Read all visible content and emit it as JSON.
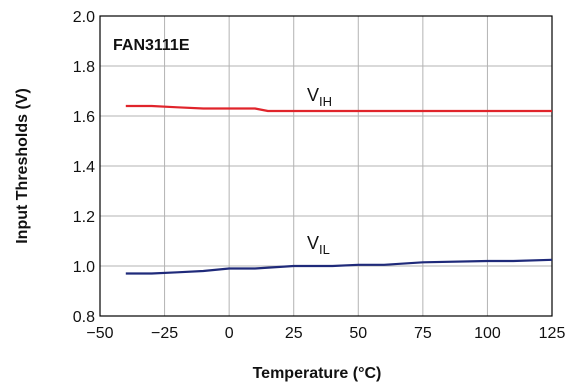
{
  "chart_data": {
    "type": "line",
    "title": "FAN3111E",
    "xlabel": "Temperature (°C)",
    "ylabel": "Input Thresholds (V)",
    "xlim": [
      -50,
      125
    ],
    "ylim": [
      0.8,
      2.0
    ],
    "x_ticks": [
      "−50",
      "−25",
      "0",
      "25",
      "50",
      "75",
      "100",
      "125"
    ],
    "y_ticks": [
      "0.8",
      "1.0",
      "1.2",
      "1.4",
      "1.6",
      "1.8",
      "2.0"
    ],
    "x_tick_values": [
      -50,
      -25,
      0,
      25,
      50,
      75,
      100,
      125
    ],
    "y_tick_values": [
      0.8,
      1.0,
      1.2,
      1.4,
      1.6,
      1.8,
      2.0
    ],
    "grid": true,
    "series": [
      {
        "label_main": "V",
        "label_sub": "IH",
        "color": "#e0242b",
        "x": [
          -40,
          -30,
          -20,
          -10,
          0,
          10,
          15,
          25,
          50,
          75,
          100,
          125
        ],
        "y": [
          1.64,
          1.64,
          1.635,
          1.63,
          1.63,
          1.63,
          1.62,
          1.62,
          1.62,
          1.62,
          1.62,
          1.62
        ]
      },
      {
        "label_main": "V",
        "label_sub": "IL",
        "color": "#1f2a7a",
        "x": [
          -40,
          -30,
          -20,
          -10,
          0,
          10,
          25,
          40,
          50,
          60,
          75,
          100,
          110,
          125
        ],
        "y": [
          0.97,
          0.97,
          0.975,
          0.98,
          0.99,
          0.99,
          1.0,
          1.0,
          1.005,
          1.005,
          1.015,
          1.02,
          1.02,
          1.025
        ]
      }
    ]
  }
}
